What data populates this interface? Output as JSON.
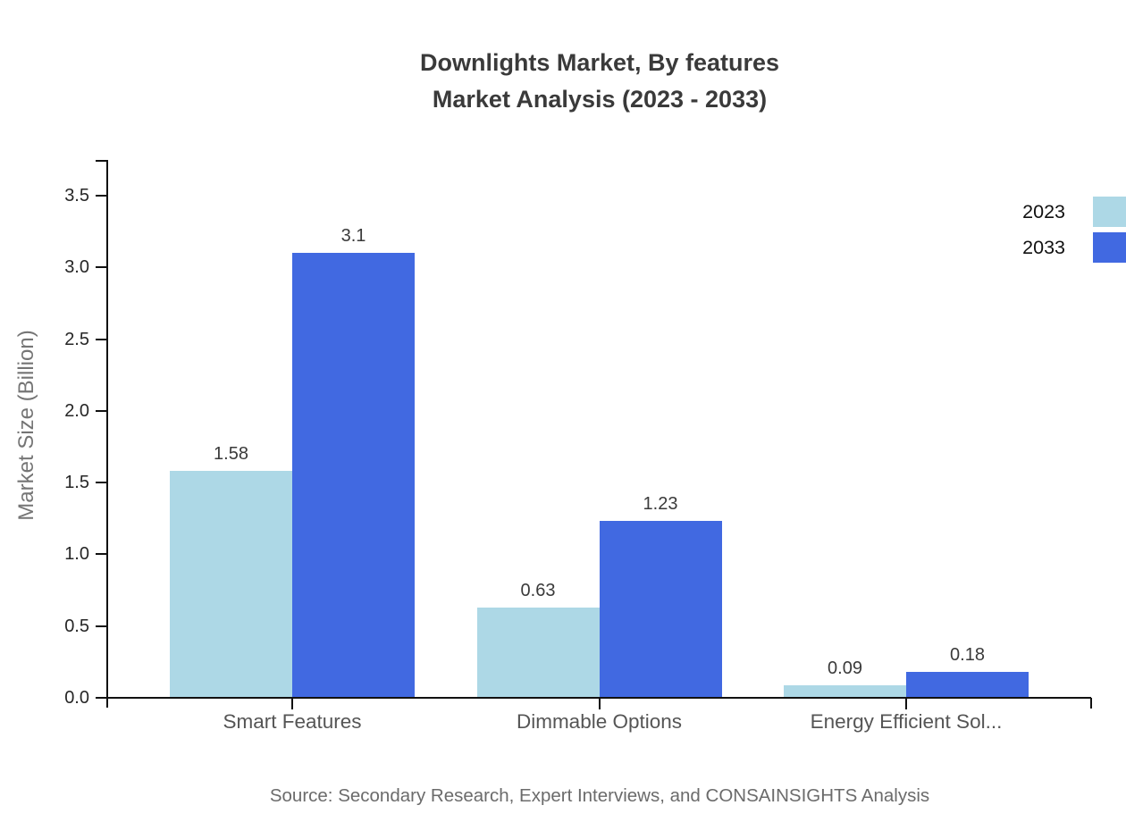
{
  "title": {
    "line1": "Downlights Market, By features",
    "line2": "Market Analysis (2023 - 2033)"
  },
  "source": "Source: Secondary Research, Expert Interviews, and CONSAINSIGHTS Analysis",
  "legend": {
    "items": [
      {
        "label": "2023",
        "color": "#ADD8E6"
      },
      {
        "label": "2033",
        "color": "#4169E1"
      }
    ]
  },
  "chart_data": {
    "type": "bar",
    "title": "Downlights Market, By features — Market Analysis (2023 - 2033)",
    "categories": [
      "Smart Features",
      "Dimmable Options",
      "Energy Efficient Sol..."
    ],
    "series": [
      {
        "name": "2023",
        "color": "#ADD8E6",
        "values": [
          1.58,
          0.63,
          0.09
        ]
      },
      {
        "name": "2033",
        "color": "#4169E1",
        "values": [
          3.1,
          1.23,
          0.18
        ]
      }
    ],
    "value_labels": [
      [
        "1.58",
        "0.63",
        "0.09"
      ],
      [
        "3.1",
        "1.23",
        "0.18"
      ]
    ],
    "xlabel": "",
    "ylabel": "Market Size (Billion)",
    "yticks": [
      "0.0",
      "0.5",
      "1.0",
      "1.5",
      "2.0",
      "2.5",
      "3.0",
      "3.5"
    ],
    "ylim": [
      0,
      3.75
    ],
    "grid": false,
    "legend_position": "top-right",
    "bar_value_labels_shown": true
  }
}
